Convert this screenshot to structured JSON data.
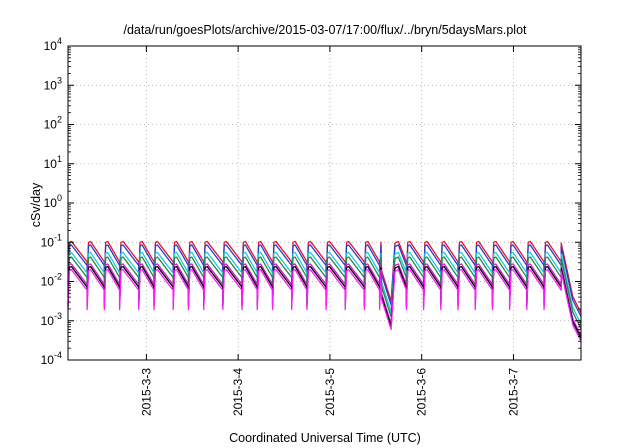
{
  "chart_data": {
    "type": "line",
    "title": "/data/run/goesPlots/archive/2015-03-07/17:00/flux/../bryn/5daysMars.plot",
    "xlabel": "Coordinated Universal Time (UTC)",
    "ylabel": "cSv/day",
    "x_range": [
      "2015-03-02 03:30",
      "2015-03-07 17:40"
    ],
    "y_scale": "log",
    "ylim": [
      0.0001,
      10000
    ],
    "y_ticks": [
      {
        "base": "10",
        "exp": "-4"
      },
      {
        "base": "10",
        "exp": "-3"
      },
      {
        "base": "10",
        "exp": "-2"
      },
      {
        "base": "10",
        "exp": "-1"
      },
      {
        "base": "10",
        "exp": "0"
      },
      {
        "base": "10",
        "exp": "1"
      },
      {
        "base": "10",
        "exp": "2"
      },
      {
        "base": "10",
        "exp": "3"
      },
      {
        "base": "10",
        "exp": "4"
      }
    ],
    "x_ticks": [
      "2015-3-3",
      "2015-3-4",
      "2015-3-5",
      "2015-3-6",
      "2015-3-7"
    ],
    "grid": true,
    "legend": "none",
    "pattern": {
      "cycles": [
        {
          "start": "2015-03-02 03:30",
          "end": "2015-03-02 08:30"
        },
        {
          "start": "2015-03-02 08:30",
          "end": "2015-03-02 13:00"
        },
        {
          "start": "2015-03-02 13:00",
          "end": "2015-03-02 17:00"
        },
        {
          "start": "2015-03-02 17:00",
          "end": "2015-03-02 22:00"
        },
        {
          "start": "2015-03-02 22:00",
          "end": "2015-03-03 02:00"
        },
        {
          "start": "2015-03-03 02:00",
          "end": "2015-03-03 07:00"
        },
        {
          "start": "2015-03-03 07:00",
          "end": "2015-03-03 11:00"
        },
        {
          "start": "2015-03-03 11:00",
          "end": "2015-03-03 15:00"
        },
        {
          "start": "2015-03-03 15:00",
          "end": "2015-03-03 20:00"
        },
        {
          "start": "2015-03-03 20:00",
          "end": "2015-03-04 01:00"
        },
        {
          "start": "2015-03-04 01:00",
          "end": "2015-03-04 05:00"
        },
        {
          "start": "2015-03-04 05:00",
          "end": "2015-03-04 09:00"
        },
        {
          "start": "2015-03-04 09:00",
          "end": "2015-03-04 14:00"
        },
        {
          "start": "2015-03-04 14:00",
          "end": "2015-03-04 18:00"
        },
        {
          "start": "2015-03-04 18:00",
          "end": "2015-03-04 23:00"
        },
        {
          "start": "2015-03-04 23:00",
          "end": "2015-03-05 04:00"
        },
        {
          "start": "2015-03-05 04:00",
          "end": "2015-03-05 09:00"
        },
        {
          "start": "2015-03-05 09:00",
          "end": "2015-03-05 13:00"
        },
        {
          "start": "2015-03-05 13:00",
          "end": "2015-03-05 17:00"
        },
        {
          "start": "2015-03-05 17:00",
          "end": "2015-03-05 20:00"
        },
        {
          "start": "2015-03-05 20:00",
          "end": "2015-03-06 00:30"
        },
        {
          "start": "2015-03-06 00:30",
          "end": "2015-03-06 05:00"
        },
        {
          "start": "2015-03-06 05:00",
          "end": "2015-03-06 09:30"
        },
        {
          "start": "2015-03-06 09:30",
          "end": "2015-03-06 14:00"
        },
        {
          "start": "2015-03-06 14:00",
          "end": "2015-03-06 18:30"
        },
        {
          "start": "2015-03-06 18:30",
          "end": "2015-03-06 23:00"
        },
        {
          "start": "2015-03-06 23:00",
          "end": "2015-03-07 03:30"
        },
        {
          "start": "2015-03-07 03:30",
          "end": "2015-03-07 08:00"
        },
        {
          "start": "2015-03-07 08:00",
          "end": "2015-03-07 12:30"
        }
      ],
      "peak_top": 0.1,
      "valley_top": 0.03,
      "dip": {
        "start": "2015-03-05 13:30",
        "bottom": "2015-03-05 16:00",
        "end": "2015-03-05 17:00",
        "value": 0.003
      },
      "tail": [
        {
          "t": "2015-03-07 12:30",
          "v": 0.09
        },
        {
          "t": "2015-03-07 15:30",
          "v": 0.004
        },
        {
          "t": "2015-03-07 17:40",
          "v": 0.0015
        }
      ]
    },
    "series": [
      {
        "color": "#e8112d",
        "scale": 1.05
      },
      {
        "color": "#2a3ad0",
        "scale": 0.85
      },
      {
        "color": "#20c8d4",
        "scale": 0.55
      },
      {
        "color": "#1e8a4a",
        "scale": 0.42
      },
      {
        "color": "#c81ec8",
        "scale": 0.28
      },
      {
        "color": "#000000",
        "scale": 0.24
      },
      {
        "color": "#ff1aff",
        "scale": 0.2
      }
    ]
  }
}
